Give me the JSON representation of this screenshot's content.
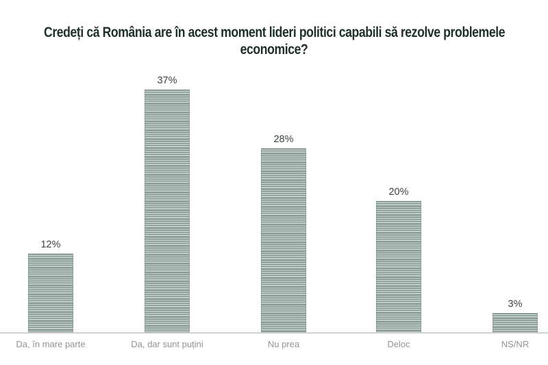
{
  "title_lines": [
    "Credeți că România are în acest moment lideri politici capabili să rezolve problemele",
    "economice?"
  ],
  "chart_data": {
    "type": "bar",
    "title": "Credeți că România are în acest moment lideri politici capabili să rezolve problemele economice?",
    "categories": [
      "Da, în mare parte",
      "Da, dar sunt puțini",
      "Nu prea",
      "Deloc",
      "NS/NR"
    ],
    "values": [
      12,
      37,
      28,
      20,
      3
    ],
    "value_labels": [
      "12%",
      "37%",
      "28%",
      "20%",
      "3%"
    ],
    "xlabel": "",
    "ylabel": "",
    "ylim": [
      0,
      40
    ],
    "grid": false,
    "legend": "none",
    "colors": {
      "title_color": "#1e302c",
      "value_label_color": "#3d4341",
      "category_label_color": "#8f9594",
      "axis_line_color": "#ccd0cf",
      "bar_dark": "#8fa19a",
      "bar_light": "#d2dcd7",
      "background": "#ffffff"
    }
  }
}
